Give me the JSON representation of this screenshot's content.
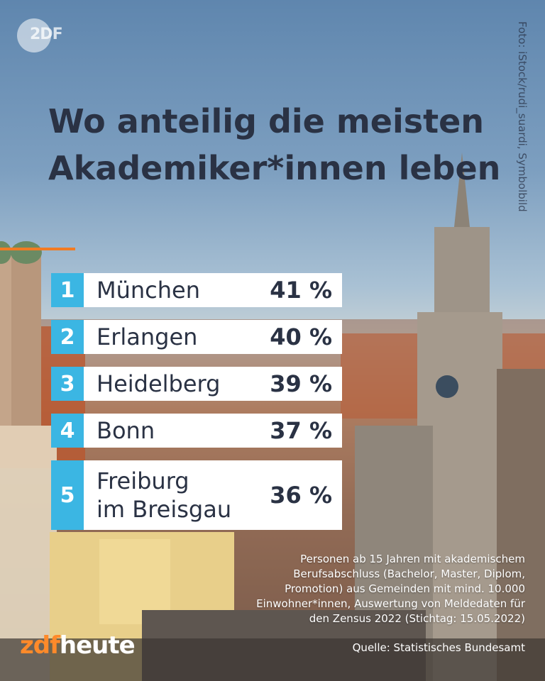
{
  "brand_top": "2DF",
  "photo_credit": "Foto: iStock/rudi_suardi, Symbolbild",
  "headline": "Wo anteilig die meisten Akademiker*innen leben",
  "ranking": [
    {
      "rank": "1",
      "city": "München",
      "percent": "41 %"
    },
    {
      "rank": "2",
      "city": "Erlangen",
      "percent": "40 %"
    },
    {
      "rank": "3",
      "city": "Heidelberg",
      "percent": "39 %"
    },
    {
      "rank": "4",
      "city": "Bonn",
      "percent": "37 %"
    },
    {
      "rank": "5",
      "city": "Freiburg\nim Breisgau",
      "percent": "36 %"
    }
  ],
  "note": "Personen ab 15 Jahren mit akademischem Berufsabschluss (Bachelor, Master, Diplom, Promotion) aus Gemeinden mit mind. 10.000 Einwohner*innen, Auswertung von Meldedaten für den Zensus 2022 (Stichtag: 15.05.2022)",
  "source": "Quelle: Statistisches Bundesamt",
  "brand_bottom": {
    "prefix": "zdf",
    "suffix": "heute"
  },
  "colors": {
    "accent": "#f27b22",
    "rank_badge": "#3bb6e3",
    "text": "#2a3244"
  }
}
